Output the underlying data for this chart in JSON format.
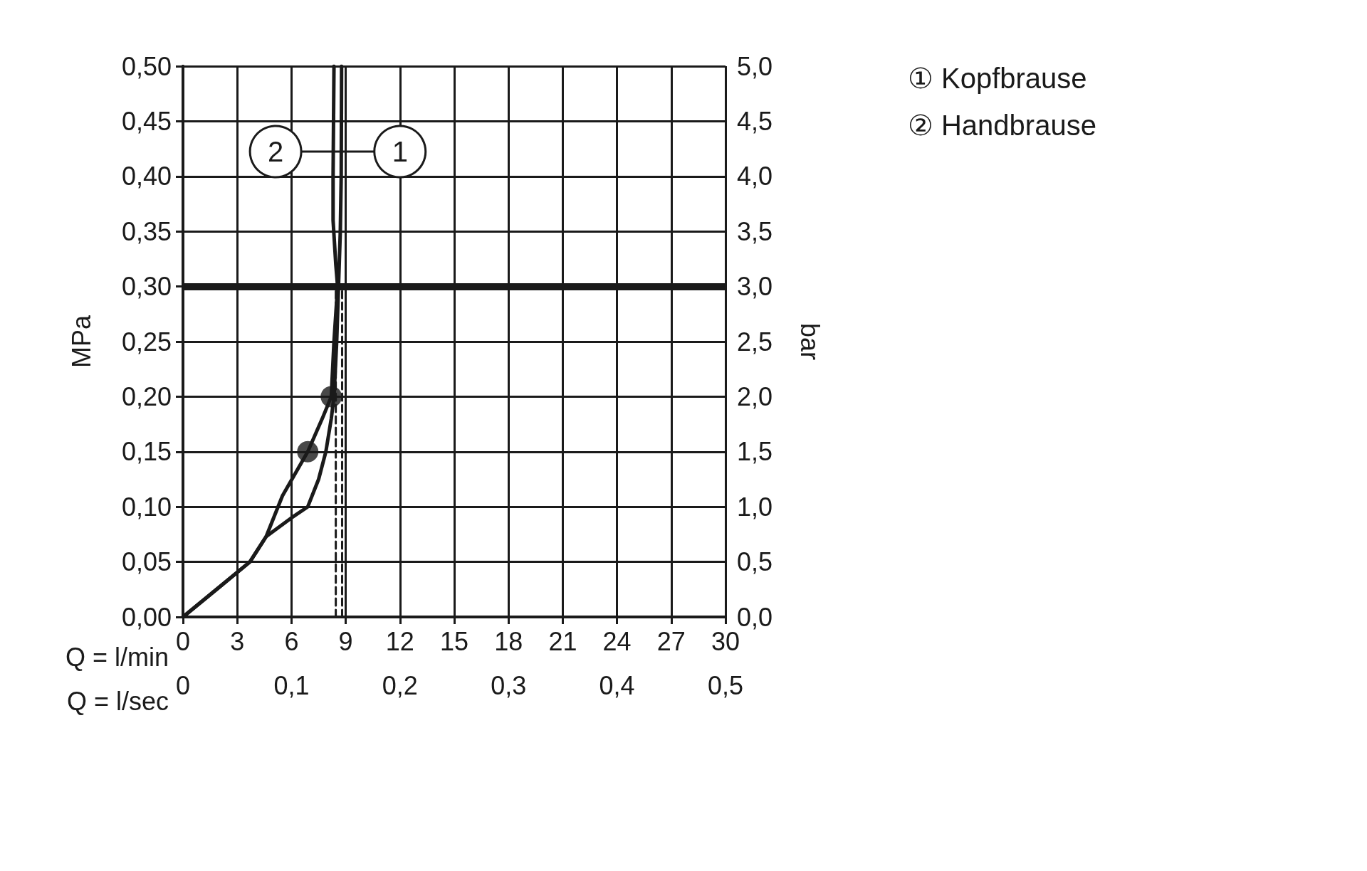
{
  "chart_data": {
    "type": "line",
    "xlabel": "Q = l/min",
    "x2label": "Q = l/sec",
    "ylabel": "MPa",
    "y2label": "bar",
    "xlim": [
      0,
      30
    ],
    "xticks": [
      0,
      3,
      6,
      9,
      12,
      15,
      18,
      21,
      24,
      27,
      30
    ],
    "x2lim": [
      0,
      0.5
    ],
    "x2ticks": [
      0,
      {
        "value": 0.1,
        "label": "0,1"
      },
      {
        "value": 0.2,
        "label": "0,2"
      },
      {
        "value": 0.3,
        "label": "0,3"
      },
      {
        "value": 0.4,
        "label": "0,4"
      },
      {
        "value": 0.5,
        "label": "0,5"
      }
    ],
    "ylim": [
      0,
      0.5
    ],
    "yticks": [
      {
        "value": 0,
        "label": "0,00"
      },
      {
        "value": 0.05,
        "label": "0,05"
      },
      {
        "value": 0.1,
        "label": "0,10"
      },
      {
        "value": 0.15,
        "label": "0,15"
      },
      {
        "value": 0.2,
        "label": "0,20"
      },
      {
        "value": 0.25,
        "label": "0,25"
      },
      {
        "value": 0.3,
        "label": "0,30"
      },
      {
        "value": 0.35,
        "label": "0,35"
      },
      {
        "value": 0.4,
        "label": "0,40"
      },
      {
        "value": 0.45,
        "label": "0,45"
      },
      {
        "value": 0.5,
        "label": "0,50"
      }
    ],
    "y2lim": [
      0,
      5
    ],
    "y2ticks": [
      {
        "value": 0,
        "label": "0,0"
      },
      {
        "value": 0.5,
        "label": "0,5"
      },
      {
        "value": 1,
        "label": "1,0"
      },
      {
        "value": 1.5,
        "label": "1,5"
      },
      {
        "value": 2,
        "label": "2,0"
      },
      {
        "value": 2.5,
        "label": "2,5"
      },
      {
        "value": 3,
        "label": "3,0"
      },
      {
        "value": 3.5,
        "label": "3,5"
      },
      {
        "value": 4,
        "label": "4,0"
      },
      {
        "value": 4.5,
        "label": "4,5"
      },
      {
        "value": 5,
        "label": "5,0"
      }
    ],
    "grid": true,
    "legend": "right",
    "marker": "none",
    "line_style": "solid",
    "series": [
      {
        "name": "① Kopfbrause",
        "color": "#1a1a1a",
        "x": [
          0,
          2,
          3.7,
          4.6,
          6,
          6.9,
          7.5,
          7.9,
          8.2,
          8.35,
          8.5,
          8.6,
          8.7,
          8.75,
          8.77
        ],
        "values": [
          0,
          0.027,
          0.05,
          0.073,
          0.09,
          0.1,
          0.125,
          0.15,
          0.18,
          0.2,
          0.25,
          0.3,
          0.35,
          0.4,
          0.5
        ]
      },
      {
        "name": "② Handbrause",
        "color": "#1a1a1a",
        "x": [
          0,
          2,
          3.7,
          4.6,
          5.5,
          6.9,
          7.7,
          8.2,
          8.35,
          8.55,
          8.45,
          8.3,
          8.3,
          8.35
        ],
        "values": [
          0,
          0.027,
          0.05,
          0.073,
          0.11,
          0.15,
          0.18,
          0.2,
          0.25,
          0.3,
          0.32,
          0.36,
          0.4,
          0.5
        ]
      },
      {
        "type": "scatter",
        "marker": "circle",
        "color": "#1a1a1a",
        "x": [
          6.9,
          8.2
        ],
        "values": [
          0.15,
          0.2
        ]
      },
      {
        "line_style": "dashed",
        "color": "#1a1a1a",
        "x": [
          8.45,
          8.45
        ],
        "values": [
          0,
          0.3
        ]
      },
      {
        "line_style": "dashed",
        "color": "#1a1a1a",
        "x": [
          8.8,
          8.8
        ],
        "values": [
          0,
          0.3
        ]
      }
    ],
    "ref_lines": [
      {
        "axis": "y",
        "value": 0.3,
        "color": "#1a1a1a"
      }
    ],
    "annotations": [
      "2",
      "1"
    ]
  }
}
